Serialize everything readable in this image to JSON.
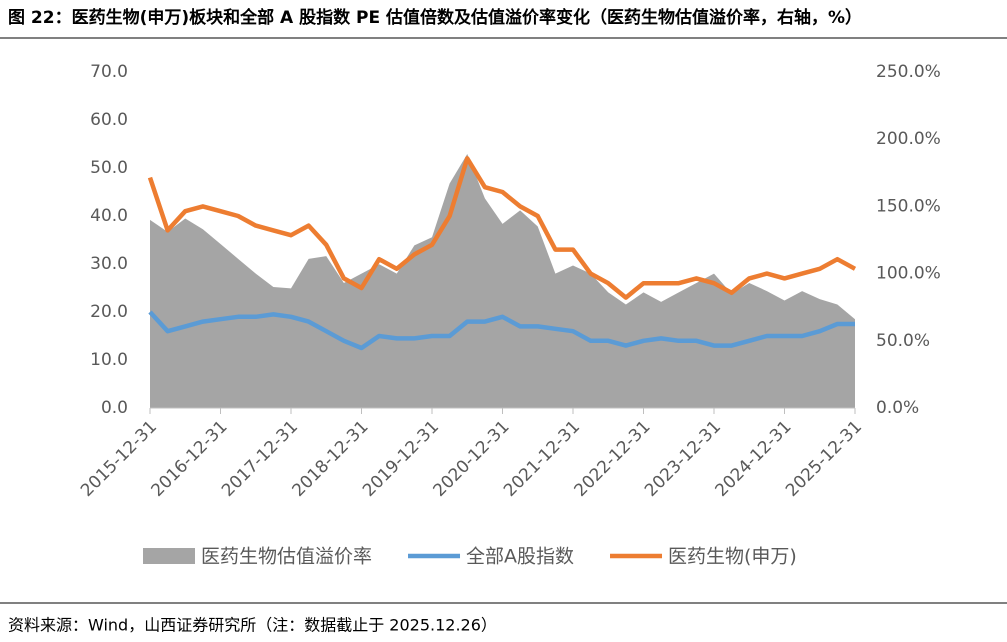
{
  "chart_data": {
    "type": "line",
    "title": "图 22：医药生物(申万)板块和全部 A 股指数 PE 估值倍数及估值溢价率变化（医药生物估值溢价率，右轴，%）",
    "source": "资料来源：Wind，山西证券研究所（注：数据截止于 2025.12.26）",
    "categories": [
      "2015-12-31",
      null,
      null,
      null,
      "2016-12-31",
      null,
      null,
      null,
      "2017-12-31",
      null,
      null,
      null,
      "2018-12-31",
      null,
      null,
      null,
      "2019-12-31",
      null,
      null,
      null,
      "2020-12-31",
      null,
      null,
      null,
      "2021-12-31",
      null,
      null,
      null,
      "2022-12-31",
      null,
      null,
      null,
      "2023-12-31",
      null,
      null,
      null,
      "2024-12-31",
      null,
      null,
      null,
      "2025-12-31"
    ],
    "ylim": [
      0,
      70
    ],
    "yticks": [
      {
        "value": 0,
        "label": "0.0"
      },
      {
        "value": 10,
        "label": "10.0"
      },
      {
        "value": 20,
        "label": "20.0"
      },
      {
        "value": 30,
        "label": "30.0"
      },
      {
        "value": 40,
        "label": "40.0"
      },
      {
        "value": 50,
        "label": "50.0"
      },
      {
        "value": 60,
        "label": "60.0"
      },
      {
        "value": 70,
        "label": "70.0"
      }
    ],
    "y2lim": [
      0,
      250
    ],
    "y2ticks": [
      {
        "value": 0,
        "label": "0.0%"
      },
      {
        "value": 50,
        "label": "50.0%"
      },
      {
        "value": 100,
        "label": "100.0%"
      },
      {
        "value": 150,
        "label": "150.0%"
      },
      {
        "value": 200,
        "label": "200.0%"
      },
      {
        "value": 250,
        "label": "250.0%"
      }
    ],
    "series": [
      {
        "name": "医药生物估值溢价率",
        "color": "#a5a5a5",
        "kind": "area",
        "axis": "y2",
        "values": [
          140,
          131,
          141,
          133,
          122,
          111,
          100,
          90,
          89,
          111,
          113,
          93,
          100,
          107,
          100,
          121,
          127,
          167,
          189,
          156,
          137,
          147,
          135,
          100,
          106,
          100,
          86,
          77,
          86,
          79,
          86,
          93,
          100,
          85,
          93,
          87,
          80,
          87,
          81,
          77,
          66
        ]
      },
      {
        "name": "全部A股指数",
        "color": "#5b9bd5",
        "kind": "line",
        "values": [
          20,
          16,
          17,
          18,
          18.5,
          19,
          19,
          19.5,
          19,
          18,
          16,
          14,
          12.5,
          15,
          14.5,
          14.5,
          15,
          15,
          18,
          18,
          19,
          17,
          17,
          16.5,
          16,
          14,
          14,
          13,
          14,
          14.5,
          14,
          14,
          13,
          13,
          14,
          15,
          15,
          15,
          16,
          17.5,
          17.5
        ]
      },
      {
        "name": "医药生物(申万)",
        "color": "#ed7d31",
        "kind": "line",
        "values": [
          48,
          37,
          41,
          42,
          41,
          40,
          38,
          37,
          36,
          38,
          34,
          27,
          25,
          31,
          29,
          32,
          34,
          40,
          52,
          46,
          45,
          42,
          40,
          33,
          33,
          28,
          26,
          23,
          26,
          26,
          26,
          27,
          26,
          24,
          27,
          28,
          27,
          28,
          29,
          31,
          29
        ]
      }
    ]
  }
}
